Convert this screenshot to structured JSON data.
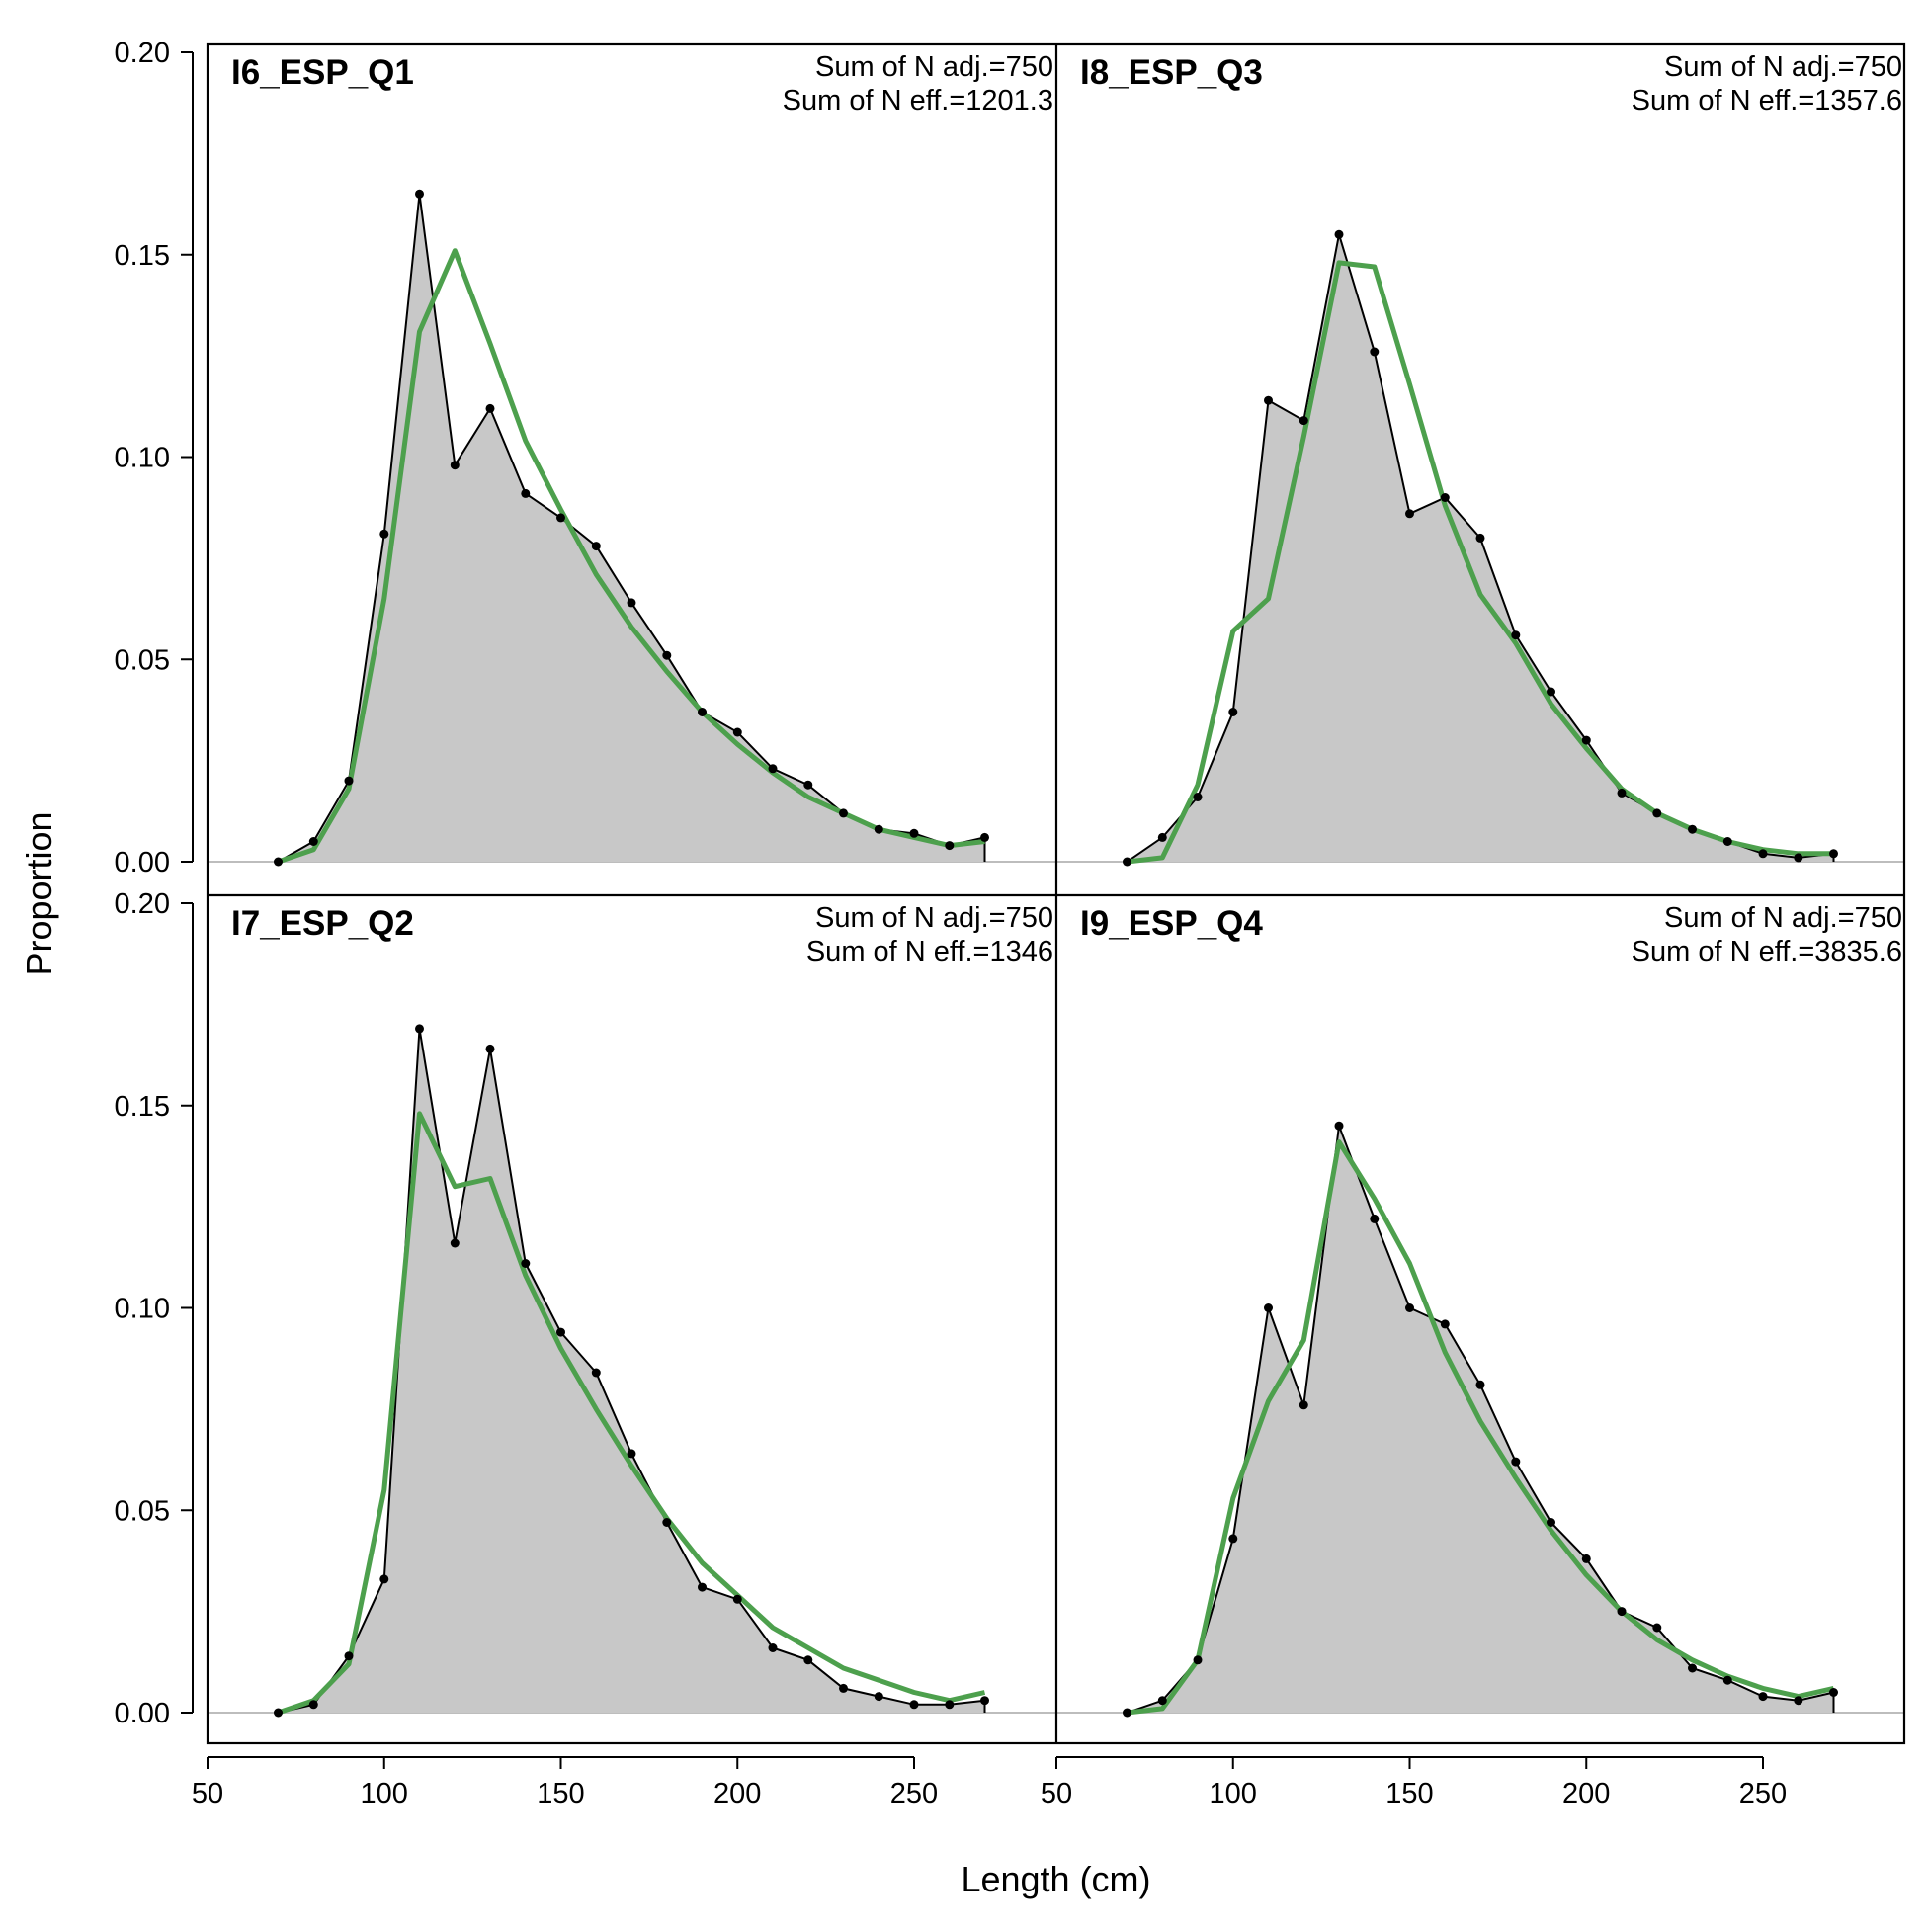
{
  "chart_data": {
    "type": "area",
    "layout": "2x2 panels",
    "xlabel": "Length (cm)",
    "ylabel": "Proportion",
    "xlim": [
      50,
      290
    ],
    "ylim": [
      0,
      0.2
    ],
    "x_ticks": [
      50,
      100,
      150,
      200,
      250
    ],
    "y_ticks": [
      0.0,
      0.05,
      0.1,
      0.15,
      0.2
    ],
    "y_tick_labels": [
      "0.00",
      "0.05",
      "0.10",
      "0.15",
      "0.20"
    ],
    "colors": {
      "observed_fill": "#c8c8c8",
      "observed_line": "#000000",
      "expected_line": "#4da04d",
      "zero_line": "#bdbdbd"
    },
    "x": [
      70,
      80,
      90,
      100,
      110,
      120,
      130,
      140,
      150,
      160,
      170,
      180,
      190,
      200,
      210,
      220,
      230,
      240,
      250,
      260,
      270
    ],
    "panels": [
      {
        "title": "I6_ESP_Q1",
        "annotations": [
          "Sum of N adj.=750",
          "Sum of N eff.=1201.3"
        ],
        "observed": [
          0.0,
          0.005,
          0.02,
          0.081,
          0.165,
          0.098,
          0.112,
          0.091,
          0.085,
          0.078,
          0.064,
          0.051,
          0.037,
          0.032,
          0.023,
          0.019,
          0.012,
          0.008,
          0.007,
          0.004,
          0.006
        ],
        "expected": [
          0.0,
          0.003,
          0.018,
          0.065,
          0.131,
          0.151,
          0.128,
          0.104,
          0.087,
          0.071,
          0.058,
          0.047,
          0.037,
          0.029,
          0.022,
          0.016,
          0.012,
          0.008,
          0.006,
          0.004,
          0.005
        ]
      },
      {
        "title": "I8_ESP_Q3",
        "annotations": [
          "Sum of N adj.=750",
          "Sum of N eff.=1357.6"
        ],
        "observed": [
          0.0,
          0.006,
          0.016,
          0.037,
          0.114,
          0.109,
          0.155,
          0.126,
          0.086,
          0.09,
          0.08,
          0.056,
          0.042,
          0.03,
          0.017,
          0.012,
          0.008,
          0.005,
          0.002,
          0.001,
          0.002
        ],
        "expected": [
          0.0,
          0.001,
          0.019,
          0.057,
          0.065,
          0.105,
          0.148,
          0.147,
          0.118,
          0.088,
          0.066,
          0.054,
          0.039,
          0.028,
          0.018,
          0.012,
          0.008,
          0.005,
          0.003,
          0.002,
          0.002
        ]
      },
      {
        "title": "I7_ESP_Q2",
        "annotations": [
          "Sum of N adj.=750",
          "Sum of N eff.=1346"
        ],
        "observed": [
          0.0,
          0.002,
          0.014,
          0.033,
          0.169,
          0.116,
          0.164,
          0.111,
          0.094,
          0.084,
          0.064,
          0.047,
          0.031,
          0.028,
          0.016,
          0.013,
          0.006,
          0.004,
          0.002,
          0.002,
          0.003
        ],
        "expected": [
          0.0,
          0.003,
          0.012,
          0.055,
          0.148,
          0.13,
          0.132,
          0.108,
          0.09,
          0.075,
          0.061,
          0.048,
          0.037,
          0.029,
          0.021,
          0.016,
          0.011,
          0.008,
          0.005,
          0.003,
          0.005
        ]
      },
      {
        "title": "I9_ESP_Q4",
        "annotations": [
          "Sum of N adj.=750",
          "Sum of N eff.=3835.6"
        ],
        "observed": [
          0.0,
          0.003,
          0.013,
          0.043,
          0.1,
          0.076,
          0.145,
          0.122,
          0.1,
          0.096,
          0.081,
          0.062,
          0.047,
          0.038,
          0.025,
          0.021,
          0.011,
          0.008,
          0.004,
          0.003,
          0.005
        ],
        "expected": [
          0.0,
          0.001,
          0.013,
          0.053,
          0.077,
          0.092,
          0.141,
          0.127,
          0.111,
          0.089,
          0.072,
          0.058,
          0.045,
          0.034,
          0.025,
          0.018,
          0.013,
          0.009,
          0.006,
          0.004,
          0.006
        ]
      }
    ]
  }
}
